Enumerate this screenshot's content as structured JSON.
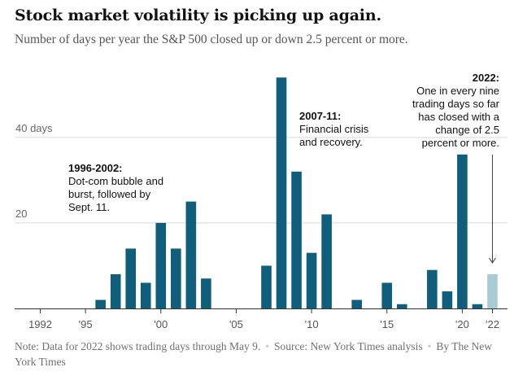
{
  "title": "Stock market volatility is picking up again.",
  "subtitle": "Number of days per year the S&P 500 closed up or down 2.5 percent or more.",
  "note": {
    "note_text": "Note: Data for 2022 shows trading days through May 9.",
    "source_text": "Source: New York Times analysis",
    "byline_text": "By The New York Times"
  },
  "annotations": {
    "dotcom": {
      "head": "1996-2002:",
      "body": [
        "Dot-com bubble and",
        "burst, followed by",
        "Sept. 11."
      ]
    },
    "financial": {
      "head": "2007-11:",
      "body": [
        "Financial crisis",
        "and recovery."
      ]
    },
    "y2022": {
      "head": "2022:",
      "body": [
        "One in every nine",
        "trading days so far",
        "has closed with a",
        "change of 2.5",
        "percent or more."
      ]
    }
  },
  "colors": {
    "bar": "#0f5e7c",
    "bar_partial": "#a9cbd4",
    "grid": "#d9d9d9",
    "axis": "#333333",
    "arrow": "#444444"
  },
  "chart_data": {
    "type": "bar",
    "x": [
      1992,
      1993,
      1994,
      1995,
      1996,
      1997,
      1998,
      1999,
      2000,
      2001,
      2002,
      2003,
      2004,
      2005,
      2006,
      2007,
      2008,
      2009,
      2010,
      2011,
      2012,
      2013,
      2014,
      2015,
      2016,
      2017,
      2018,
      2019,
      2020,
      2021,
      2022
    ],
    "values": [
      0,
      0,
      0,
      0,
      2,
      8,
      14,
      6,
      20,
      14,
      25,
      7,
      0,
      0,
      0,
      10,
      54,
      32,
      13,
      22,
      0,
      2,
      0,
      6,
      1,
      0,
      9,
      4,
      36,
      1,
      8
    ],
    "partial_year": 2022,
    "xtick_labels": [
      {
        "year": 1992,
        "label": "1992"
      },
      {
        "year": 1995,
        "label": "'95"
      },
      {
        "year": 2000,
        "label": "'00"
      },
      {
        "year": 2005,
        "label": "'05"
      },
      {
        "year": 2010,
        "label": "'10"
      },
      {
        "year": 2015,
        "label": "'15"
      },
      {
        "year": 2020,
        "label": "'20"
      },
      {
        "year": 2022,
        "label": "'22"
      }
    ],
    "ytick_labels": [
      {
        "value": 20,
        "label": "20"
      },
      {
        "value": 40,
        "label": "40 days"
      }
    ],
    "ylim": [
      0,
      55
    ],
    "xlim": [
      1991,
      2023
    ],
    "grid": true
  }
}
